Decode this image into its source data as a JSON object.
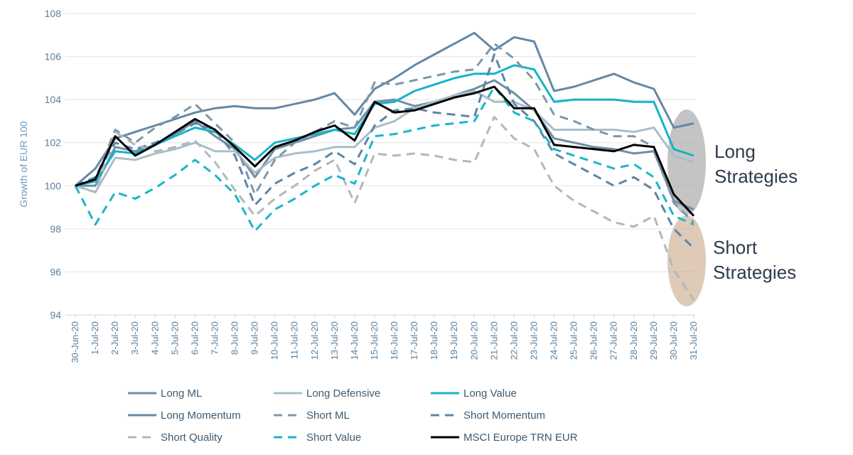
{
  "chart_data": {
    "type": "line",
    "ylabel": "Growth of EUR 100",
    "ylim": [
      94,
      108
    ],
    "yticks": [
      94,
      96,
      98,
      100,
      102,
      104,
      106,
      108
    ],
    "grid": true,
    "legend_position": "bottom",
    "x": [
      "30-Jun-20",
      "1-Jul-20",
      "2-Jul-20",
      "3-Jul-20",
      "4-Jul-20",
      "5-Jul-20",
      "6-Jul-20",
      "7-Jul-20",
      "8-Jul-20",
      "9-Jul-20",
      "10-Jul-20",
      "11-Jul-20",
      "12-Jul-20",
      "13-Jul-20",
      "14-Jul-20",
      "15-Jul-20",
      "16-Jul-20",
      "17-Jul-20",
      "18-Jul-20",
      "19-Jul-20",
      "20-Jul-20",
      "21-Jul-20",
      "22-Jul-20",
      "23-Jul-20",
      "24-Jul-20",
      "25-Jul-20",
      "26-Jul-20",
      "27-Jul-20",
      "28-Jul-20",
      "29-Jul-20",
      "30-Jul-20",
      "31-Jul-20"
    ],
    "series": [
      {
        "name": "Long ML",
        "color": "#6e8ea3",
        "dash": "solid",
        "width": 3,
        "values": [
          100,
          100.0,
          101.8,
          101.6,
          101.9,
          102.4,
          103.0,
          102.3,
          101.7,
          100.4,
          101.7,
          102.0,
          102.3,
          102.6,
          102.7,
          103.9,
          104.0,
          103.7,
          103.9,
          104.2,
          104.5,
          104.9,
          104.3,
          103.5,
          102.2,
          102.0,
          101.8,
          101.7,
          101.5,
          101.6,
          99.3,
          98.9
        ]
      },
      {
        "name": "Long Defensive",
        "color": "#a9bec9",
        "dash": "solid",
        "width": 3,
        "values": [
          100,
          99.7,
          101.3,
          101.2,
          101.5,
          101.7,
          102.0,
          101.6,
          101.6,
          100.6,
          101.3,
          101.5,
          101.6,
          101.8,
          101.8,
          102.7,
          103.0,
          103.6,
          103.9,
          104.2,
          104.4,
          103.9,
          103.9,
          103.5,
          102.6,
          102.6,
          102.6,
          102.6,
          102.5,
          102.7,
          101.4,
          101.1
        ]
      },
      {
        "name": "Long Value",
        "color": "#15b3c9",
        "dash": "solid",
        "width": 3,
        "values": [
          100,
          100.2,
          101.6,
          101.5,
          101.9,
          102.3,
          102.7,
          102.5,
          101.9,
          101.2,
          102.0,
          102.2,
          102.4,
          102.6,
          102.4,
          103.8,
          103.9,
          104.4,
          104.7,
          105.0,
          105.2,
          105.2,
          105.6,
          105.4,
          103.9,
          104.0,
          104.0,
          104.0,
          103.9,
          103.9,
          101.7,
          101.4
        ]
      },
      {
        "name": "Long Momentum",
        "color": "#6388a8",
        "dash": "solid",
        "width": 3,
        "values": [
          100,
          100.8,
          102.2,
          102.5,
          102.8,
          103.1,
          103.4,
          103.6,
          103.7,
          103.6,
          103.6,
          103.8,
          104.0,
          104.3,
          103.3,
          104.5,
          105.0,
          105.6,
          106.1,
          106.6,
          107.1,
          106.3,
          106.9,
          106.7,
          104.4,
          104.6,
          104.9,
          105.2,
          104.8,
          104.5,
          102.7,
          102.9
        ]
      },
      {
        "name": "Short ML",
        "color": "#7c98aa",
        "dash": "dash",
        "width": 3,
        "values": [
          100,
          100.3,
          102.6,
          102.0,
          102.7,
          103.2,
          103.8,
          102.9,
          102.0,
          99.6,
          101.2,
          102.0,
          102.5,
          103.0,
          102.7,
          104.8,
          104.7,
          104.9,
          105.1,
          105.3,
          105.4,
          106.6,
          105.9,
          104.9,
          103.3,
          103.0,
          102.6,
          102.3,
          102.3,
          101.8,
          99.2,
          98.3
        ]
      },
      {
        "name": "Short Momentum",
        "color": "#5a86a8",
        "dash": "dash",
        "width": 3,
        "values": [
          100,
          100.4,
          102.0,
          101.7,
          102.0,
          102.4,
          102.9,
          102.6,
          101.4,
          99.1,
          100.1,
          100.6,
          101.0,
          101.6,
          101.0,
          102.8,
          103.5,
          103.6,
          103.4,
          103.3,
          103.2,
          106.1,
          103.8,
          103.0,
          101.5,
          101.0,
          100.5,
          100.0,
          100.4,
          99.8,
          98.0,
          97.1
        ]
      },
      {
        "name": "Short Quality",
        "color": "#b0b8be",
        "dash": "dash",
        "width": 3,
        "values": [
          100,
          99.7,
          102.5,
          101.9,
          101.6,
          101.8,
          102.1,
          101.1,
          99.8,
          98.6,
          99.4,
          100.0,
          100.7,
          101.2,
          99.2,
          101.5,
          101.4,
          101.5,
          101.4,
          101.2,
          101.1,
          103.2,
          102.2,
          101.7,
          100.0,
          99.3,
          98.8,
          98.3,
          98.1,
          98.6,
          96.1,
          94.7
        ]
      },
      {
        "name": "Short Value",
        "color": "#1bb5cb",
        "dash": "dash",
        "width": 3,
        "values": [
          100,
          98.2,
          99.7,
          99.4,
          99.9,
          100.5,
          101.2,
          100.5,
          99.6,
          97.9,
          98.9,
          99.4,
          100.0,
          100.5,
          100.1,
          102.3,
          102.4,
          102.6,
          102.8,
          102.9,
          103.0,
          104.6,
          103.4,
          103.0,
          101.7,
          101.4,
          101.1,
          100.8,
          101.0,
          100.4,
          98.6,
          98.2
        ]
      },
      {
        "name": "MSCI Europe TRN EUR",
        "color": "#000000",
        "dash": "solid",
        "width": 3,
        "values": [
          100,
          100.3,
          102.3,
          101.4,
          101.9,
          102.5,
          103.1,
          102.6,
          101.8,
          100.9,
          101.8,
          102.1,
          102.5,
          102.8,
          102.1,
          103.9,
          103.4,
          103.5,
          103.8,
          104.1,
          104.3,
          104.6,
          103.6,
          103.6,
          101.9,
          101.8,
          101.7,
          101.6,
          101.9,
          101.8,
          99.6,
          98.6
        ]
      }
    ],
    "annotations": [
      {
        "lines": [
          "Long",
          "Strategies"
        ],
        "color": "#a0a0a0"
      },
      {
        "lines": [
          "Short",
          "Strategies"
        ],
        "color": "#c9a98a"
      }
    ]
  }
}
